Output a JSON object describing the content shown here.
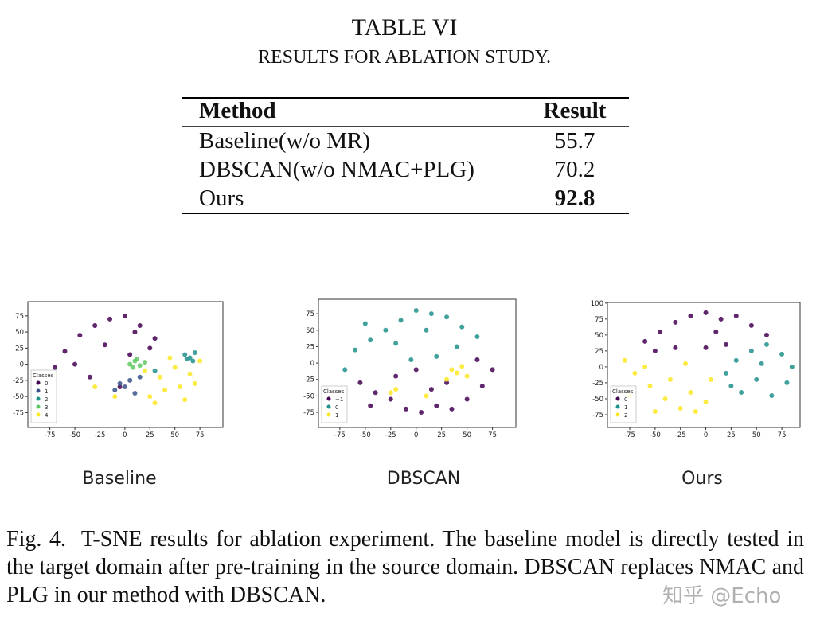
{
  "table_title": "TABLE VI",
  "table_subtitle": "RESULTS FOR ABLATION STUDY.",
  "table": {
    "header": [
      "Method",
      "Result"
    ],
    "rows": [
      [
        "Baseline(w/o MR)",
        55.7
      ],
      [
        "DBSCAN(w/o NMAC+PLG)",
        70.2
      ],
      [
        "Ours",
        92.8
      ]
    ],
    "bold_row": 2
  },
  "chart_data": [
    {
      "type": "scatter",
      "title": "Baseline",
      "legend_title": "Classes",
      "xlim": [
        -97,
        98
      ],
      "ylim": [
        -98,
        97
      ],
      "xticks": [
        -75,
        -50,
        -25,
        0,
        25,
        50,
        75
      ],
      "yticks": [
        -75,
        -50,
        -25,
        0,
        25,
        50,
        75
      ],
      "series": [
        {
          "name": "0",
          "color": "#440154",
          "x": [
            -60,
            -45,
            -30,
            -15,
            0,
            15,
            30,
            -50,
            -20,
            10,
            -70,
            -35,
            5,
            25,
            -5
          ],
          "y": [
            20,
            45,
            60,
            70,
            75,
            60,
            40,
            0,
            30,
            50,
            -5,
            -20,
            15,
            25,
            -35
          ]
        },
        {
          "name": "1",
          "color": "#3b528b",
          "x": [
            -5,
            0,
            5,
            -10,
            15,
            10
          ],
          "y": [
            -30,
            -35,
            -25,
            -40,
            -20,
            -45
          ]
        },
        {
          "name": "2",
          "color": "#21918c",
          "x": [
            60,
            65,
            70,
            68,
            62,
            30
          ],
          "y": [
            15,
            10,
            18,
            5,
            8,
            -10
          ]
        },
        {
          "name": "3",
          "color": "#5ec962",
          "x": [
            5,
            10,
            15,
            8,
            20,
            12
          ],
          "y": [
            0,
            5,
            -2,
            -5,
            3,
            8
          ]
        },
        {
          "name": "4",
          "color": "#fde725",
          "x": [
            20,
            35,
            50,
            65,
            75,
            40,
            55,
            25,
            45,
            60,
            -30,
            -10,
            30,
            70
          ],
          "y": [
            -10,
            -20,
            -5,
            -15,
            5,
            -40,
            -35,
            -50,
            10,
            -55,
            -35,
            -50,
            -60,
            -30
          ]
        }
      ]
    },
    {
      "type": "scatter",
      "title": "DBSCAN",
      "legend_title": "Classes",
      "xlim": [
        -96,
        98
      ],
      "ylim": [
        -98,
        97
      ],
      "xticks": [
        -75,
        -50,
        -25,
        0,
        25,
        50,
        75
      ],
      "yticks": [
        -75,
        -50,
        -25,
        0,
        25,
        50,
        75
      ],
      "series": [
        {
          "name": "−1",
          "color": "#440154",
          "x": [
            -55,
            -40,
            -25,
            -10,
            5,
            20,
            35,
            50,
            65,
            75,
            -20,
            0,
            30,
            60,
            -45,
            15
          ],
          "y": [
            -30,
            -45,
            -55,
            -70,
            -75,
            -65,
            -70,
            -55,
            -35,
            -10,
            -20,
            -10,
            -30,
            5,
            -65,
            -40
          ]
        },
        {
          "name": "0",
          "color": "#21918c",
          "x": [
            -60,
            -45,
            -30,
            -15,
            0,
            15,
            30,
            45,
            60,
            -50,
            -20,
            10,
            40,
            -70,
            20,
            -5
          ],
          "y": [
            20,
            35,
            50,
            65,
            80,
            75,
            70,
            55,
            40,
            60,
            30,
            50,
            25,
            -10,
            10,
            5
          ]
        },
        {
          "name": "1",
          "color": "#fde725",
          "x": [
            35,
            40,
            45,
            50,
            -20,
            -25,
            10,
            30
          ],
          "y": [
            -10,
            -15,
            -5,
            -20,
            -40,
            -45,
            -50,
            -25
          ]
        }
      ]
    },
    {
      "type": "scatter",
      "title": "Ours",
      "legend_title": "Classes",
      "xlim": [
        -97,
        93
      ],
      "ylim": [
        -95,
        101
      ],
      "xticks": [
        -75,
        -50,
        -25,
        0,
        25,
        50,
        75
      ],
      "yticks": [
        -75,
        -50,
        -25,
        0,
        25,
        50,
        75,
        100
      ],
      "series": [
        {
          "name": "0",
          "color": "#440154",
          "x": [
            -60,
            -45,
            -30,
            -15,
            0,
            15,
            30,
            45,
            60,
            -30,
            0,
            20,
            -50,
            10
          ],
          "y": [
            40,
            55,
            70,
            80,
            85,
            75,
            80,
            65,
            50,
            30,
            30,
            35,
            25,
            55
          ]
        },
        {
          "name": "1",
          "color": "#21918c",
          "x": [
            20,
            30,
            45,
            60,
            75,
            85,
            50,
            35,
            65,
            80,
            25,
            55
          ],
          "y": [
            -10,
            10,
            25,
            35,
            20,
            0,
            -20,
            -40,
            -45,
            -25,
            -30,
            5
          ]
        },
        {
          "name": "2",
          "color": "#fde725",
          "x": [
            -80,
            -70,
            -55,
            -40,
            -25,
            -10,
            0,
            -60,
            -35,
            -15,
            -75,
            -50,
            -20,
            5
          ],
          "y": [
            10,
            -10,
            -30,
            -50,
            -65,
            -70,
            -55,
            0,
            -20,
            -40,
            -45,
            -70,
            5,
            -20
          ]
        }
      ]
    }
  ],
  "caption": "Fig. 4.  T-SNE results for ablation experiment. The baseline model is directly tested in the target domain after pre-training in the source domain. DBSCAN replaces NMAC and PLG in our method with DBSCAN.",
  "watermark": "知乎 @Echo"
}
